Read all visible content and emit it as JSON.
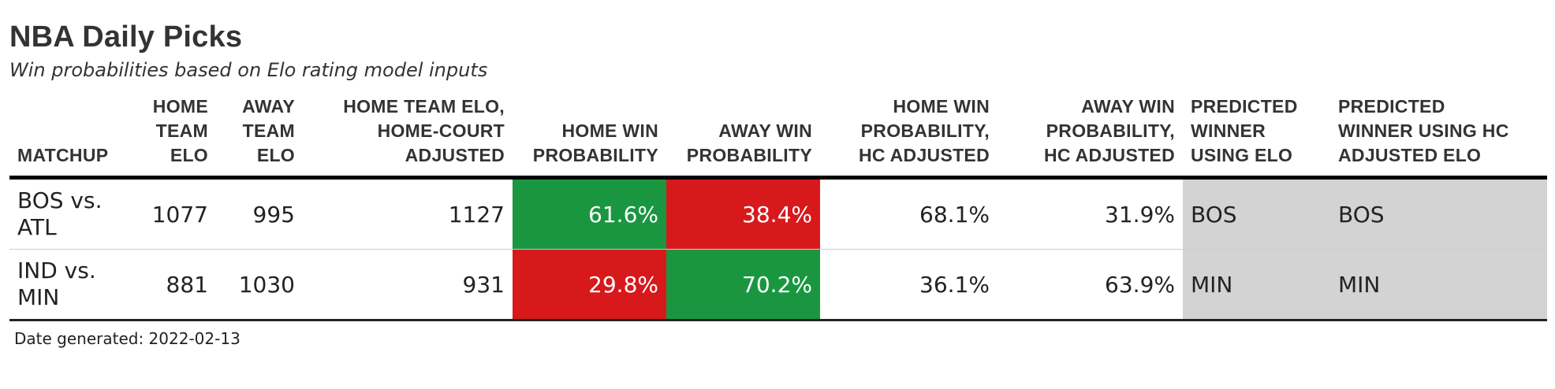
{
  "title": "NBA Daily Picks",
  "subtitle": "Win probabilities based on Elo rating model inputs",
  "colors": {
    "favored": "#1a9641",
    "unfavored": "#d7191c",
    "predicted_bg": "#d3d3d3"
  },
  "table": {
    "headers": {
      "matchup": "MATCHUP",
      "home_elo_l1": "HOME",
      "home_elo_l2": "TEAM",
      "home_elo_l3": "ELO",
      "away_elo_l1": "AWAY",
      "away_elo_l2": "TEAM",
      "away_elo_l3": "ELO",
      "home_adj_l1": "HOME TEAM ELO,",
      "home_adj_l2": "HOME-COURT",
      "home_adj_l3": "ADJUSTED",
      "home_prob_l1": "HOME WIN",
      "home_prob_l2": "PROBABILITY",
      "away_prob_l1": "AWAY WIN",
      "away_prob_l2": "PROBABILITY",
      "home_hc_l1": "HOME WIN",
      "home_hc_l2": "PROBABILITY,",
      "home_hc_l3": "HC ADJUSTED",
      "away_hc_l1": "AWAY WIN",
      "away_hc_l2": "PROBABILITY,",
      "away_hc_l3": "HC ADJUSTED",
      "pred_elo_l1": "PREDICTED",
      "pred_elo_l2": "WINNER",
      "pred_elo_l3": "USING ELO",
      "pred_hc_l1": "PREDICTED",
      "pred_hc_l2": "WINNER USING HC",
      "pred_hc_l3": "ADJUSTED ELO"
    },
    "rows": [
      {
        "matchup_l1": "BOS vs.",
        "matchup_l2": "ATL",
        "home_elo": "1077",
        "away_elo": "995",
        "home_elo_adj": "1127",
        "home_prob": "61.6%",
        "home_prob_color": "#1a9641",
        "away_prob": "38.4%",
        "away_prob_color": "#d7191c",
        "home_prob_hc": "68.1%",
        "away_prob_hc": "31.9%",
        "pred_elo": "BOS",
        "pred_hc": "BOS"
      },
      {
        "matchup_l1": "IND vs.",
        "matchup_l2": "MIN",
        "home_elo": "881",
        "away_elo": "1030",
        "home_elo_adj": "931",
        "home_prob": "29.8%",
        "home_prob_color": "#d7191c",
        "away_prob": "70.2%",
        "away_prob_color": "#1a9641",
        "home_prob_hc": "36.1%",
        "away_prob_hc": "63.9%",
        "pred_elo": "MIN",
        "pred_hc": "MIN"
      }
    ]
  },
  "footer": "Date generated: 2022-02-13"
}
